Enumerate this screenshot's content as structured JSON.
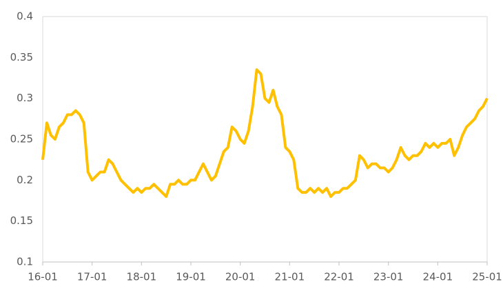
{
  "chart_data": {
    "type": "line",
    "categories": [
      "16-01",
      null,
      null,
      null,
      null,
      null,
      null,
      null,
      null,
      null,
      null,
      null,
      "17-01",
      null,
      null,
      null,
      null,
      null,
      null,
      null,
      null,
      null,
      null,
      null,
      "18-01",
      null,
      null,
      null,
      null,
      null,
      null,
      null,
      null,
      null,
      null,
      null,
      "19-01",
      null,
      null,
      null,
      null,
      null,
      null,
      null,
      null,
      null,
      null,
      null,
      "20-01",
      null,
      null,
      null,
      null,
      null,
      null,
      null,
      null,
      null,
      null,
      null,
      "21-01",
      null,
      null,
      null,
      null,
      null,
      null,
      null,
      null,
      null,
      null,
      null,
      "22-01",
      null,
      null,
      null,
      null,
      null,
      null,
      null,
      null,
      null,
      null,
      null,
      "23-01",
      null,
      null,
      null,
      null,
      null,
      null,
      null,
      null,
      null,
      null,
      null,
      "24-01",
      null,
      null,
      null,
      null,
      null,
      null,
      null,
      null,
      null,
      null,
      null,
      "25-01"
    ],
    "values": [
      0.225,
      0.27,
      0.255,
      0.25,
      0.265,
      0.27,
      0.28,
      0.28,
      0.285,
      0.28,
      0.27,
      0.21,
      0.2,
      0.205,
      0.21,
      0.21,
      0.225,
      0.22,
      0.21,
      0.2,
      0.195,
      0.19,
      0.185,
      0.19,
      0.185,
      0.19,
      0.19,
      0.195,
      0.19,
      0.185,
      0.18,
      0.195,
      0.195,
      0.2,
      0.195,
      0.195,
      0.2,
      0.2,
      0.21,
      0.22,
      0.21,
      0.2,
      0.205,
      0.22,
      0.235,
      0.24,
      0.265,
      0.26,
      0.25,
      0.245,
      0.26,
      0.29,
      0.335,
      0.33,
      0.3,
      0.295,
      0.31,
      0.29,
      0.28,
      0.24,
      0.235,
      0.225,
      0.19,
      0.185,
      0.185,
      0.19,
      0.185,
      0.19,
      0.185,
      0.19,
      0.18,
      0.185,
      0.185,
      0.19,
      0.19,
      0.195,
      0.2,
      0.23,
      0.225,
      0.215,
      0.22,
      0.22,
      0.215,
      0.215,
      0.21,
      0.215,
      0.225,
      0.24,
      0.23,
      0.225,
      0.23,
      0.23,
      0.235,
      0.245,
      0.24,
      0.245,
      0.24,
      0.245,
      0.245,
      0.25,
      0.23,
      0.24,
      0.255,
      0.265,
      0.27,
      0.275,
      0.285,
      0.29,
      0.3
    ],
    "color": "#ffc000",
    "ylim": [
      0.1,
      0.4
    ],
    "yticks": [
      0.1,
      0.15,
      0.2,
      0.25,
      0.3,
      0.35,
      0.4
    ]
  }
}
